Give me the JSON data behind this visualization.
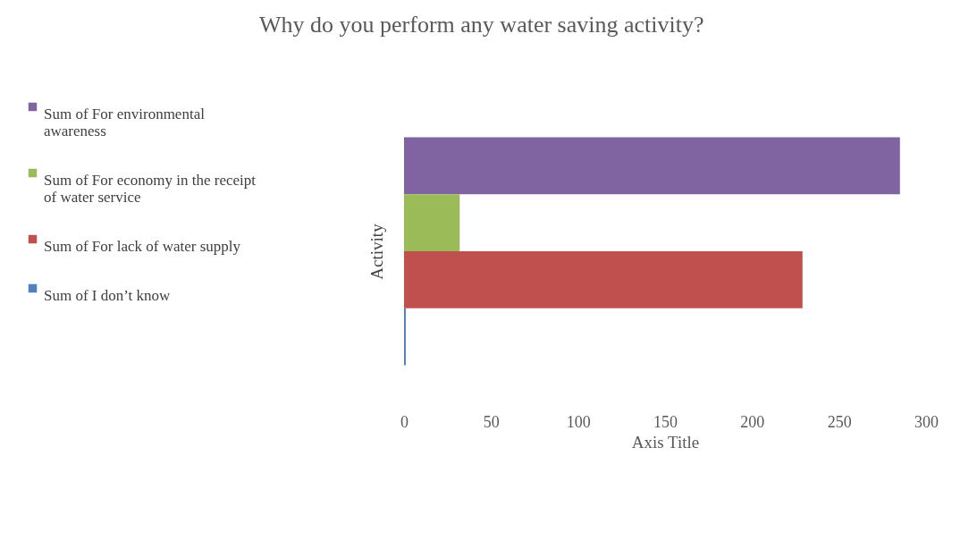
{
  "chart_data": {
    "type": "bar",
    "orientation": "horizontal",
    "title": "Why do you perform any water saving activity?",
    "xlabel": "Axis Title",
    "ylabel": "Activity",
    "categories": [
      null
    ],
    "series": [
      {
        "name": "Sum of For environmental awareness",
        "color": "#8064a2",
        "values": [
          285
        ]
      },
      {
        "name": "Sum of For economy in the receipt of water service",
        "color": "#9bbb59",
        "values": [
          32
        ]
      },
      {
        "name": "Sum of For lack of water supply",
        "color": "#c0504d",
        "values": [
          229
        ]
      },
      {
        "name": "Sum of I don’t know",
        "color": "#4f81bd",
        "values": [
          1
        ]
      }
    ],
    "xlim": [
      0,
      300
    ],
    "xticks": [
      0,
      50,
      100,
      150,
      200,
      250,
      300
    ],
    "grid": false,
    "legend": "left"
  }
}
